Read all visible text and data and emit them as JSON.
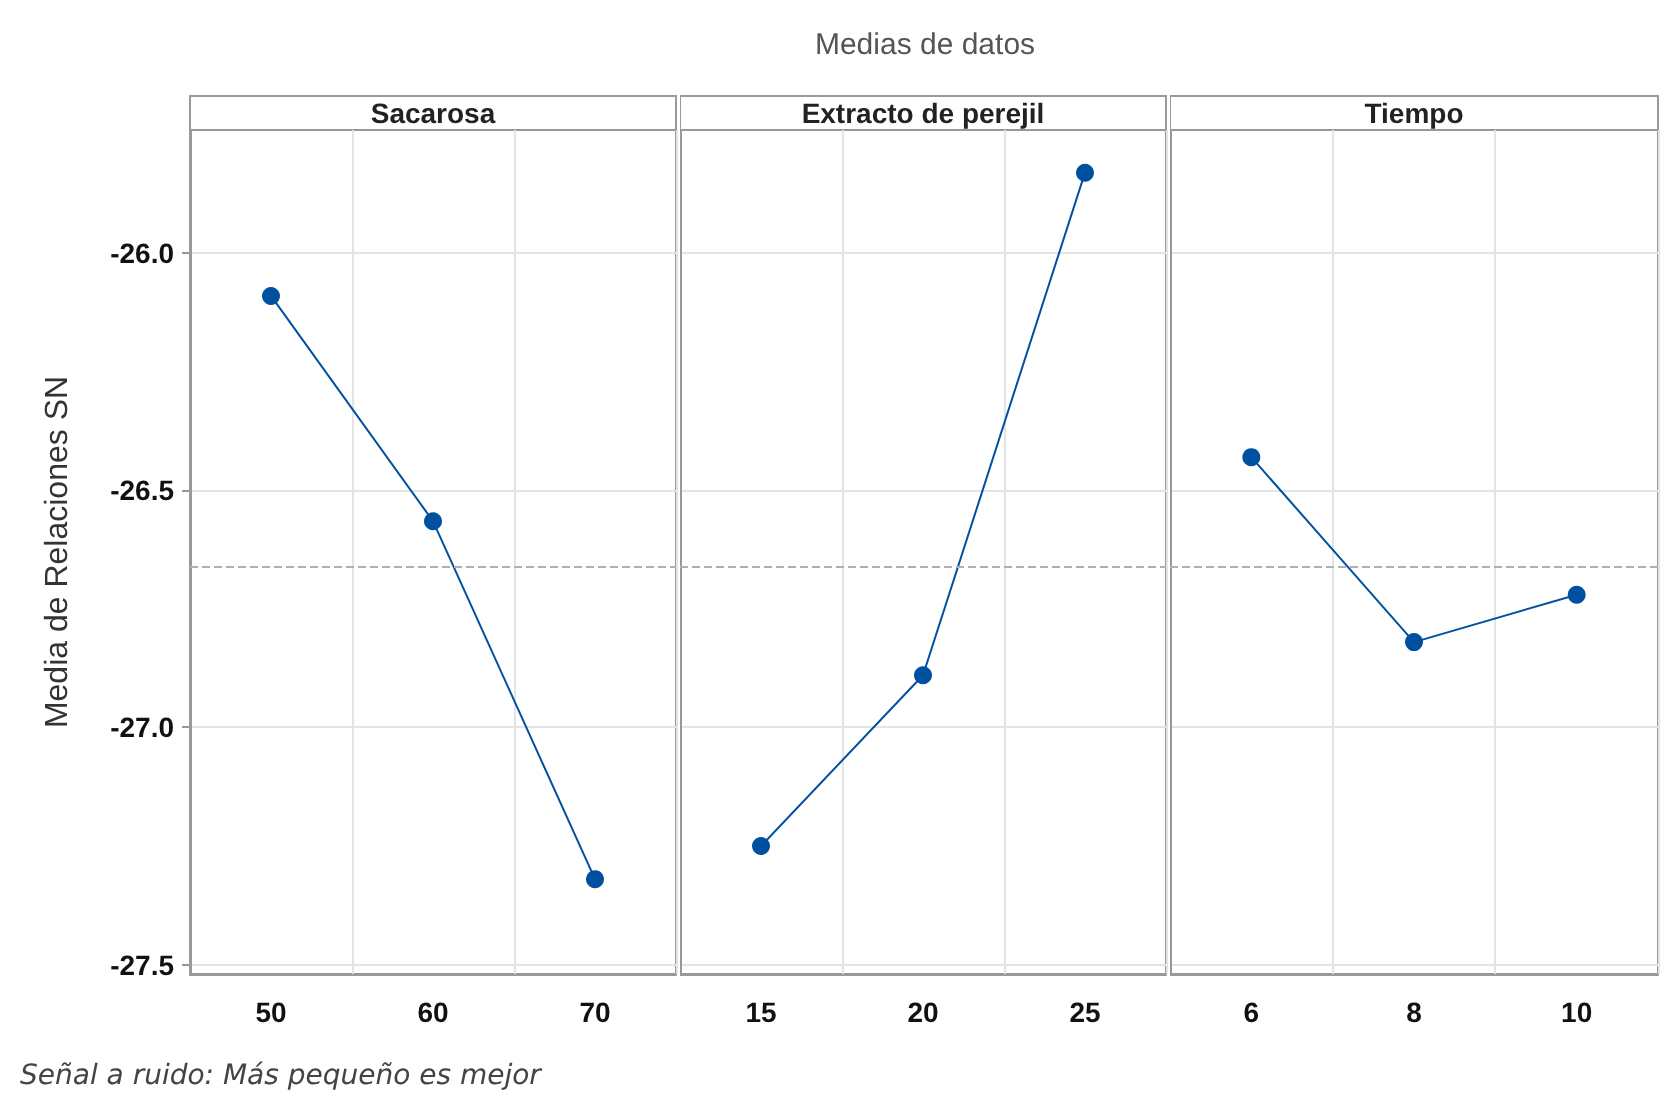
{
  "chart_data": [
    {
      "type": "line",
      "title": "Sacarosa",
      "ylabel": "Media de Relaciones SN",
      "annotations": [
        "Señal a ruido: Más pequeño es mejor"
      ],
      "categories": [
        "50",
        "60",
        "70"
      ],
      "values": [
        -26.09,
        -26.565,
        -27.32
      ],
      "color": "#0050a0",
      "ylim": [
        -27.52,
        -25.74
      ],
      "yticks": [
        {
          "value": -27.5,
          "label": "-27.5"
        },
        {
          "value": -27,
          "label": "-27.0"
        },
        {
          "value": -26.5,
          "label": "-26.5"
        },
        {
          "value": -26,
          "label": "-26.0"
        }
      ],
      "grid": true,
      "marker": "circle",
      "ref_lines": [
        {
          "axis": "y",
          "value": -26.66,
          "color": "#b0b0b0",
          "line_style": "dashed"
        }
      ]
    },
    {
      "type": "line",
      "title": "Extracto de perejil",
      "subtitle": "Medias de datos",
      "categories": [
        "15",
        "20",
        "25"
      ],
      "values": [
        -27.25,
        -26.89,
        -25.83
      ],
      "color": "#0050a0",
      "ylim": [
        -27.52,
        -25.74
      ],
      "yticks": [
        -27.5,
        -27,
        -26.5,
        -26
      ],
      "grid": true,
      "marker": "circle",
      "tick_labels": "x",
      "ref_lines": [
        {
          "axis": "y",
          "value": -26.66,
          "color": "#b0b0b0",
          "line_style": "dashed"
        }
      ]
    },
    {
      "type": "line",
      "title": "Tiempo",
      "categories": [
        "6",
        "8",
        "10"
      ],
      "values": [
        -26.43,
        -26.82,
        -26.72
      ],
      "color": "#0050a0",
      "ylim": [
        -27.52,
        -25.74
      ],
      "yticks": [
        -27.5,
        -27,
        -26.5,
        -26
      ],
      "grid": true,
      "marker": "circle",
      "tick_labels": "x",
      "ref_lines": [
        {
          "axis": "y",
          "value": -26.66,
          "color": "#b0b0b0",
          "line_style": "dashed"
        }
      ]
    }
  ]
}
